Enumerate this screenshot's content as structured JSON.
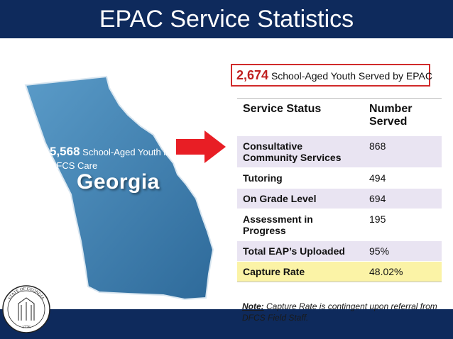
{
  "header": {
    "title": "EPAC Service Statistics"
  },
  "map": {
    "label": "Georgia",
    "stat_number": "5,568",
    "stat_text": "School-Aged Youth in DFCS Care",
    "fill_color": "#3d7fb0"
  },
  "highlight": {
    "number": "2,674",
    "text": "School-Aged Youth Served by EPAC",
    "border_color": "#d12a2a"
  },
  "table": {
    "headers": [
      "Service Status",
      "Number Served"
    ],
    "rows": [
      {
        "label": "Consultative Community Services",
        "value": "868"
      },
      {
        "label": "Tutoring",
        "value": "494"
      },
      {
        "label": "On Grade Level",
        "value": "694"
      },
      {
        "label": "Assessment in Progress",
        "value": "195"
      },
      {
        "label": "Total EAP’s Uploaded",
        "value": "95%"
      },
      {
        "label": "Capture Rate",
        "value": "48.02%"
      }
    ]
  },
  "note": {
    "lead": "Note:",
    "text": "Capture Rate is contingent upon referral from DFCS Field Staff."
  },
  "seal": {
    "top_text": "STATE OF GEORGIA",
    "year": "1776"
  }
}
